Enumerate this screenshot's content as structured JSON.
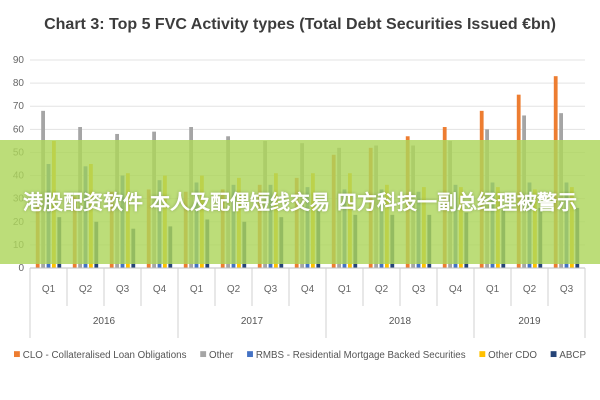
{
  "chart_data": {
    "type": "bar",
    "title": "Chart 3: Top 5 FVC Activity types (Total Debt Securities Issued €bn)",
    "xlabel": "",
    "ylabel": "",
    "ylim": [
      0,
      90
    ],
    "yticks": [
      0,
      10,
      20,
      30,
      40,
      50,
      60,
      70,
      80,
      90
    ],
    "grid": true,
    "legend_position": "bottom",
    "categories": [
      "Q1",
      "Q2",
      "Q3",
      "Q4",
      "Q1",
      "Q2",
      "Q3",
      "Q4",
      "Q1",
      "Q2",
      "Q3",
      "Q4",
      "Q1",
      "Q2",
      "Q3"
    ],
    "years": [
      {
        "label": "2016",
        "count": 4
      },
      {
        "label": "2017",
        "count": 4
      },
      {
        "label": "2018",
        "count": 4
      },
      {
        "label": "2019",
        "count": 3
      }
    ],
    "series": [
      {
        "name": "CLO - Collateralised Loan Obligations",
        "color": "#ed7d31",
        "values": [
          30,
          31,
          33,
          34,
          33,
          34,
          36,
          39,
          49,
          52,
          57,
          61,
          68,
          75,
          83
        ]
      },
      {
        "name": "Other",
        "color": "#a5a5a5",
        "values": [
          68,
          61,
          58,
          59,
          61,
          57,
          55,
          54,
          52,
          53,
          53,
          55,
          60,
          66,
          67
        ]
      },
      {
        "name": "RMBS - Residential Mortgage Backed Securities",
        "color": "#4472c4",
        "values": [
          45,
          44,
          40,
          38,
          37,
          36,
          36,
          35,
          34,
          34,
          33,
          36,
          37,
          37,
          37
        ]
      },
      {
        "name": "Other CDO",
        "color": "#ffc000",
        "values": [
          55,
          45,
          41,
          40,
          40,
          39,
          41,
          41,
          41,
          36,
          35,
          35,
          35,
          34,
          35
        ]
      },
      {
        "name": "ABCP",
        "color": "#264478",
        "values": [
          22,
          20,
          17,
          18,
          21,
          20,
          22,
          25,
          23,
          23,
          23,
          24,
          25,
          26,
          26
        ]
      }
    ]
  },
  "overlay": {
    "text": "港股配资软件 本人及配偶短线交易 四方科技一副总经理被警示"
  }
}
